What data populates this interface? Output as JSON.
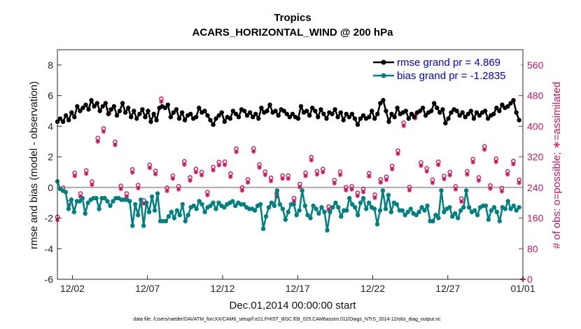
{
  "chart_data": {
    "type": "line",
    "title": "Tropics",
    "subtitle": "ACARS_HORIZONTAL_WIND @ 200 hPa",
    "xlabel": "Dec.01,2014 00:00:00 start",
    "ylabel": "rmse and bias (model - observation)",
    "ylabel_right": "# of obs: o=possible; ∗=assimilated",
    "xlim": [
      1,
      32
    ],
    "ylim": [
      -6,
      9
    ],
    "ylim_right": [
      0,
      600
    ],
    "x_tick_values": [
      2,
      7,
      12,
      17,
      22,
      27,
      32
    ],
    "x_tick_labels": [
      "12/02",
      "12/07",
      "12/12",
      "12/17",
      "12/22",
      "12/27",
      "01/01"
    ],
    "y_ticks": [
      -6,
      -4,
      -2,
      0,
      2,
      4,
      6,
      8
    ],
    "y_ticks_right": [
      0,
      80,
      160,
      240,
      320,
      400,
      480,
      560
    ],
    "legend": [
      "rmse grand pr = 4.869",
      "bias grand pr = -1.2835"
    ],
    "footnote": "data file: /Users/raeder/DAI/ATM_forcXX/CAM6_setup/f.e21.FHIST_BGC.f09_025.CAM6assim.011/Diags_NTrS_2014-12/obs_diag_output.nc",
    "series": [
      {
        "name": "rmse",
        "color": "#000000",
        "values": [
          4.3,
          4.5,
          4.3,
          4.7,
          4.4,
          4.9,
          4.6,
          5.3,
          5.0,
          5.2,
          5.4,
          5.1,
          5.7,
          5.3,
          5.5,
          5.0,
          5.3,
          5.5,
          4.8,
          5.1,
          5.3,
          4.7,
          5.0,
          5.5,
          4.9,
          5.2,
          4.6,
          5.0,
          4.5,
          4.8,
          5.1,
          4.6,
          5.0,
          4.3,
          4.8,
          4.4,
          5.2,
          5.3,
          5.2,
          5.4,
          4.6,
          4.9,
          5.1,
          4.5,
          4.9,
          4.4,
          4.7,
          4.8,
          4.5,
          4.6,
          5.2,
          4.9,
          5.0,
          4.7,
          4.4,
          4.1,
          4.5,
          4.7,
          4.9,
          4.3,
          4.6,
          4.5,
          5.0,
          4.8,
          4.6,
          5.1,
          5.0,
          4.7,
          4.9,
          4.6,
          4.8,
          4.5,
          5.2,
          4.9,
          5.0,
          5.4,
          4.9,
          5.0,
          4.7,
          5.1,
          5.0,
          4.8,
          4.6,
          4.8,
          4.6,
          4.5,
          5.3,
          4.9,
          5.0,
          4.7,
          5.2,
          5.0,
          4.6,
          5.1,
          4.8,
          4.5,
          4.9,
          4.8,
          5.1,
          4.6,
          4.9,
          4.4,
          4.8,
          4.6,
          4.8,
          4.5,
          4.1,
          4.5,
          4.7,
          4.5,
          4.6,
          5.0,
          4.5,
          4.8,
          5.5,
          5.7,
          5.0,
          4.3,
          4.8,
          4.6,
          5.2,
          4.8,
          4.9,
          5.0,
          4.5,
          4.8,
          4.6,
          4.9,
          5.0,
          5.2,
          4.7,
          4.9,
          5.0,
          5.5,
          5.2,
          4.9,
          5.1,
          4.2,
          4.5,
          4.9,
          5.1,
          5.0,
          4.7,
          4.9,
          4.6,
          4.8,
          5.0,
          4.5,
          4.9,
          4.7,
          4.9,
          5.0,
          4.5,
          4.7,
          4.8,
          5.2,
          5.0,
          5.4,
          5.2,
          5.3,
          5.5,
          5.7,
          4.9,
          4.4
        ]
      },
      {
        "name": "bias",
        "color": "#008080",
        "values": [
          0.4,
          -0.1,
          -0.2,
          -0.3,
          -1.4,
          -0.8,
          -1.6,
          -0.9,
          -0.9,
          -0.7,
          -1.7,
          -1.0,
          -0.8,
          -0.7,
          -0.7,
          -1.4,
          -0.7,
          -0.7,
          -0.9,
          -1.2,
          -0.9,
          -0.7,
          -0.7,
          -0.8,
          -0.8,
          -0.8,
          -0.9,
          -2.5,
          -1.1,
          -1.8,
          -0.8,
          -2.5,
          -1.0,
          -1.6,
          -0.6,
          -1.5,
          -0.4,
          -2.2,
          -2.2,
          -2.2,
          -1.9,
          -1.6,
          -2.0,
          -1.5,
          -1.8,
          -1.1,
          -2.2,
          -1.8,
          -1.3,
          -1.2,
          -1.4,
          -0.9,
          -1.1,
          -1.6,
          -1.3,
          -1.2,
          -1.0,
          -1.4,
          -1.0,
          -1.2,
          -1.3,
          -1.1,
          -1.0,
          -0.9,
          -1.2,
          -1.0,
          -1.1,
          -1.1,
          -1.3,
          -1.4,
          -1.4,
          -1.5,
          -1.2,
          -1.1,
          -2.7,
          -1.9,
          -1.3,
          -1.0,
          -1.2,
          -0.2,
          -1.1,
          -1.4,
          -2.1,
          -1.6,
          -1.1,
          -1.1,
          -1.8,
          -1.5,
          -0.2,
          -1.2,
          -1.8,
          -2.0,
          -1.2,
          -1.4,
          -1.7,
          -1.3,
          -1.6,
          -2.8,
          -1.6,
          -1.3,
          -1.0,
          -1.3,
          -1.9,
          -1.5,
          -1.5,
          -0.7,
          -1.1,
          -1.3,
          -1.8,
          -1.0,
          -0.7,
          -1.4,
          -1.0,
          -1.3,
          -1.4,
          -2.4,
          -1.5,
          -0.2,
          -1.4,
          -0.5,
          -1.6,
          -1.0,
          -1.1,
          -1.5,
          -1.5,
          -1.8,
          -1.6,
          -1.4,
          -1.7,
          -1.8,
          -1.6,
          -1.3,
          -1.5,
          -1.2,
          -2.2,
          -2.2,
          -1.8,
          -2.0,
          -0.2,
          -1.6,
          -1.4,
          -1.3,
          -1.9,
          -1.7,
          -2.0,
          -1.5,
          -1.3,
          -0.2,
          -1.3,
          -1.6,
          -1.5,
          -1.8,
          -1.3,
          -1.2,
          -1.2,
          -2.1,
          -1.5,
          -1.3,
          -1.6,
          -2.2,
          -1.3,
          -1.4,
          -0.9,
          -1.4,
          -1.2,
          -1.5,
          -1.3
        ]
      },
      {
        "name": "possible",
        "color": "#d4145a",
        "axis": "right",
        "values": [
          163,
          220,
          239,
          236,
          201,
          325,
          278,
          266,
          224,
          320,
          284,
          204,
          255,
          395,
          369,
          381,
          394,
          455,
          442,
          339,
          359,
          248,
          244,
          304,
          224,
          346,
          287,
          305,
          246,
          224,
          206,
          265,
          299,
          202,
          283,
          459,
          472,
          315,
          239,
          418,
          271,
          261,
          243,
          313,
          308,
          300,
          266,
          219,
          288,
          243,
          280,
          323,
          228,
          312,
          293,
          298,
          306,
          271,
          307,
          244,
          276,
          231,
          341,
          285,
          240,
          310,
          261,
          309,
          342,
          363,
          300,
          280,
          281,
          236,
          265,
          255,
          224,
          336,
          271,
          358,
          271,
          249,
          212,
          246,
          249,
          220,
          278,
          355,
          319,
          273,
          282,
          299,
          288,
          311,
          190,
          296,
          259,
          293,
          281,
          285,
          241,
          302,
          243,
          222,
          226,
          225,
          236,
          274,
          277,
          326,
          221,
          327,
          261,
          222,
          268,
          311,
          296,
          374,
          336,
          251,
          409,
          283,
          241,
          212,
          429,
          319,
          305,
          328,
          290,
          282,
          260,
          227,
          307,
          239,
          270,
          280,
          280,
          229,
          243,
          232,
          211,
          219,
          282,
          275,
          314,
          290,
          266,
          274,
          347,
          291,
          245,
          229,
          315,
          248,
          238,
          297,
          282,
          282,
          309,
          239,
          260
        ]
      },
      {
        "name": "assimilated",
        "color": "#d4145a",
        "axis": "right",
        "values": [
          155,
          212,
          231,
          228,
          193,
          316,
          270,
          258,
          216,
          312,
          276,
          196,
          247,
          386,
          360,
          373,
          386,
          447,
          434,
          331,
          351,
          240,
          236,
          296,
          216,
          338,
          279,
          297,
          238,
          216,
          198,
          257,
          291,
          194,
          275,
          451,
          464,
          307,
          231,
          410,
          263,
          253,
          235,
          305,
          300,
          292,
          258,
          211,
          280,
          235,
          272,
          315,
          220,
          304,
          285,
          290,
          298,
          263,
          299,
          236,
          268,
          223,
          333,
          277,
          232,
          302,
          253,
          301,
          334,
          355,
          292,
          272,
          273,
          228,
          257,
          247,
          216,
          328,
          263,
          350,
          263,
          241,
          204,
          238,
          241,
          212,
          270,
          347,
          311,
          265,
          274,
          291,
          280,
          303,
          182,
          288,
          251,
          285,
          273,
          277,
          233,
          294,
          235,
          214,
          218,
          217,
          228,
          266,
          269,
          318,
          213,
          319,
          253,
          214,
          260,
          303,
          288,
          366,
          328,
          243,
          401,
          275,
          233,
          204,
          421,
          311,
          297,
          320,
          282,
          274,
          252,
          219,
          299,
          231,
          262,
          272,
          272,
          221,
          235,
          224,
          203,
          211,
          274,
          267,
          306,
          282,
          258,
          266,
          339,
          283,
          237,
          221,
          307,
          240,
          230,
          289,
          274,
          274,
          301,
          231,
          252
        ]
      }
    ]
  },
  "colors": {
    "rmse": "#000000",
    "bias": "#008080",
    "obs": "#d4145a",
    "zero_line": "#aaaaaa",
    "legend_text": "#0000dd"
  }
}
